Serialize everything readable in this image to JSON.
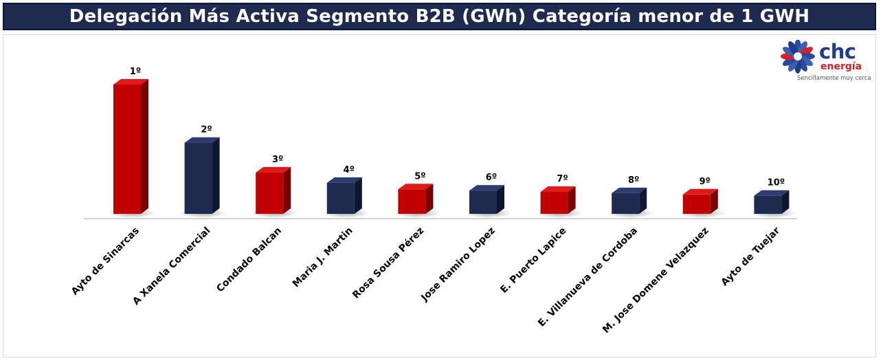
{
  "title": "Delegación Más Activa Segmento B2B (GWh) Categoría menor de 1 GWH",
  "logo": {
    "brand": "chc",
    "sub": "energía",
    "tagline": "Sencillamente muy cerca"
  },
  "colors": {
    "red": "#c00000",
    "navy": "#1f2a50",
    "title_bg": "#1f2a50"
  },
  "chart_data": {
    "type": "bar",
    "categories": [
      "Ayto de Sinarcas",
      "A Xanela Comercial",
      "Condado Balcan",
      "Maria J. Martin",
      "Rosa Sousa Pérez",
      "Jose Ramiro Lopez",
      "E. Puerto Lapice",
      "E. Villanueva de Cordoba",
      "M. Jose Domene Velazquez",
      "Ayto de Tuejar"
    ],
    "values": [
      100,
      55,
      32,
      24,
      19,
      18,
      17,
      16,
      15,
      14
    ],
    "ranks": [
      "1º",
      "2º",
      "3º",
      "4º",
      "5º",
      "6º",
      "7º",
      "8º",
      "9º",
      "10º"
    ],
    "bar_colors": [
      "red",
      "navy",
      "red",
      "navy",
      "red",
      "navy",
      "red",
      "navy",
      "red",
      "navy"
    ],
    "title": "Delegación Más Activa Segmento B2B (GWh) Categoría menor de 1 GWH",
    "xlabel": "",
    "ylabel": "",
    "ylim": [
      0,
      100
    ],
    "grid": false,
    "legend": "none",
    "style": "3d-columns"
  }
}
